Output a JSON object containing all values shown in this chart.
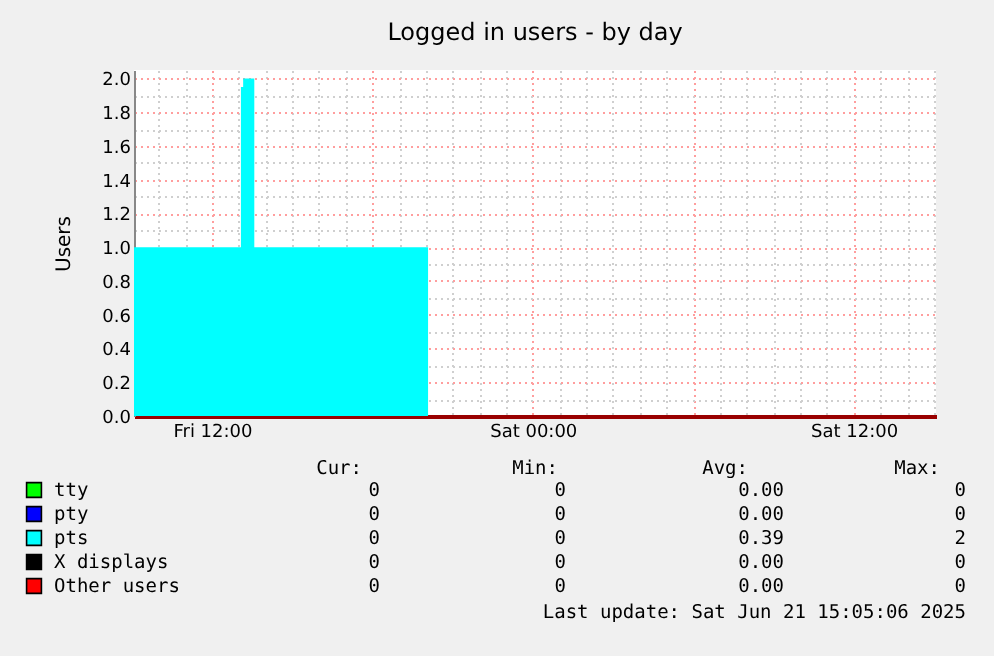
{
  "chart_data": {
    "type": "area",
    "title": "Logged in users - by day",
    "ylabel": "Users",
    "x": [
      "2025-06-20T09:05",
      "2025-06-20T13:05",
      "2025-06-20T13:10",
      "2025-06-20T13:35",
      "2025-06-20T20:05",
      "2025-06-21T15:05"
    ],
    "series": [
      {
        "name": "tty",
        "color": "#00ff00",
        "values": [
          null,
          null,
          null,
          null,
          null,
          null
        ]
      },
      {
        "name": "pty",
        "color": "#0000ff",
        "values": [
          null,
          null,
          null,
          null,
          null,
          null
        ]
      },
      {
        "name": "pts",
        "color": "#00ffff",
        "values": [
          1,
          1.95,
          2,
          1,
          0,
          0
        ]
      },
      {
        "name": "X displays",
        "color": "#000000",
        "values": [
          null,
          null,
          null,
          null,
          null,
          null
        ]
      },
      {
        "name": "Other users",
        "color": "#ff0000",
        "values": [
          null,
          null,
          null,
          null,
          null,
          null
        ]
      }
    ],
    "xlim": [
      "2025-06-20T09:05",
      "2025-06-21T15:05"
    ],
    "xticks": [
      {
        "value": "2025-06-20T10:00",
        "label": null
      },
      {
        "value": "2025-06-20T11:00",
        "label": null
      },
      {
        "value": "2025-06-20T12:00",
        "label": "Fri 12:00"
      },
      {
        "value": "2025-06-20T13:00",
        "label": null
      },
      {
        "value": "2025-06-20T14:00",
        "label": null
      },
      {
        "value": "2025-06-20T15:00",
        "label": null
      },
      {
        "value": "2025-06-20T16:00",
        "label": null
      },
      {
        "value": "2025-06-20T17:00",
        "label": null
      },
      {
        "value": "2025-06-20T18:00",
        "label": null
      },
      {
        "value": "2025-06-20T19:00",
        "label": null
      },
      {
        "value": "2025-06-20T20:00",
        "label": null
      },
      {
        "value": "2025-06-20T21:00",
        "label": null
      },
      {
        "value": "2025-06-20T22:00",
        "label": null
      },
      {
        "value": "2025-06-20T23:00",
        "label": null
      },
      {
        "value": "2025-06-21T00:00",
        "label": "Sat 00:00"
      },
      {
        "value": "2025-06-21T01:00",
        "label": null
      },
      {
        "value": "2025-06-21T02:00",
        "label": null
      },
      {
        "value": "2025-06-21T03:00",
        "label": null
      },
      {
        "value": "2025-06-21T04:00",
        "label": null
      },
      {
        "value": "2025-06-21T05:00",
        "label": null
      },
      {
        "value": "2025-06-21T06:00",
        "label": null
      },
      {
        "value": "2025-06-21T07:00",
        "label": null
      },
      {
        "value": "2025-06-21T08:00",
        "label": null
      },
      {
        "value": "2025-06-21T09:00",
        "label": null
      },
      {
        "value": "2025-06-21T10:00",
        "label": null
      },
      {
        "value": "2025-06-21T11:00",
        "label": null
      },
      {
        "value": "2025-06-21T12:00",
        "label": "Sat 12:00"
      },
      {
        "value": "2025-06-21T13:00",
        "label": null
      },
      {
        "value": "2025-06-21T14:00",
        "label": null
      },
      {
        "value": "2025-06-21T15:00",
        "label": null
      }
    ],
    "ylim": [
      0,
      2.05
    ],
    "yticks": [
      {
        "value": 0,
        "label": "0.0"
      },
      {
        "value": 0.1,
        "label": null
      },
      {
        "value": 0.2,
        "label": "0.2"
      },
      {
        "value": 0.3,
        "label": null
      },
      {
        "value": 0.4,
        "label": "0.4"
      },
      {
        "value": 0.5,
        "label": null
      },
      {
        "value": 0.6,
        "label": "0.6"
      },
      {
        "value": 0.7,
        "label": null
      },
      {
        "value": 0.8,
        "label": "0.8"
      },
      {
        "value": 0.9,
        "label": null
      },
      {
        "value": 1.0,
        "label": "1.0"
      },
      {
        "value": 1.1,
        "label": null
      },
      {
        "value": 1.2,
        "label": "1.2"
      },
      {
        "value": 1.3,
        "label": null
      },
      {
        "value": 1.4,
        "label": "1.4"
      },
      {
        "value": 1.5,
        "label": null
      },
      {
        "value": 1.6,
        "label": "1.6"
      },
      {
        "value": 1.7,
        "label": null
      },
      {
        "value": 1.8,
        "label": "1.8"
      },
      {
        "value": 1.9,
        "label": null
      },
      {
        "value": 2.0,
        "label": "2.0"
      }
    ],
    "grid": true,
    "legend": "bottom",
    "annotations": [
      "Cur:",
      "Min:",
      "Avg:",
      "Max:",
      "0",
      "0",
      "0.00",
      "0",
      "0",
      "0",
      "0.00",
      "0",
      "0",
      "0",
      "0.39",
      "2",
      "0",
      "0",
      "0.00",
      "0",
      "0",
      "0",
      "0.00",
      "0",
      "Last update: Sat Jun 21 15:05:06 2025"
    ]
  }
}
